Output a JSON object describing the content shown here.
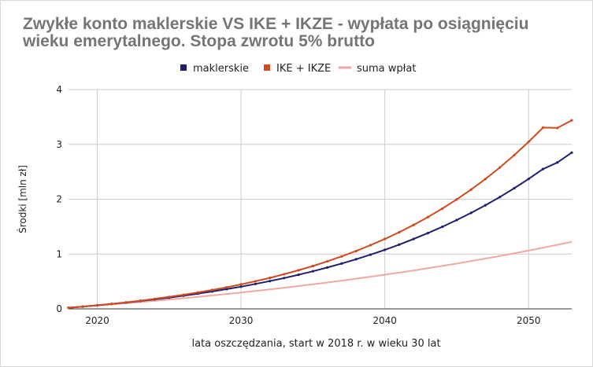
{
  "chart_data": {
    "type": "line",
    "title": "Zwykłe konto maklerskie VS IKE + IKZE - wypłata po osiągnięciu wieku emerytalnego. Stopa zwrotu 5% brutto",
    "xlabel": "lata oszczędzania, start w 2018 r. w wieku 30 lat",
    "ylabel": "Środki [mln zł]",
    "xlim": [
      2018,
      2053
    ],
    "ylim": [
      0,
      4
    ],
    "x_ticks": [
      2020,
      2030,
      2040,
      2050
    ],
    "y_ticks": [
      0,
      1,
      2,
      3,
      4
    ],
    "grid": true,
    "legend_position": "top-center",
    "x": [
      2018,
      2019,
      2020,
      2021,
      2022,
      2023,
      2024,
      2025,
      2026,
      2027,
      2028,
      2029,
      2030,
      2031,
      2032,
      2033,
      2034,
      2035,
      2036,
      2037,
      2038,
      2039,
      2040,
      2041,
      2042,
      2043,
      2044,
      2045,
      2046,
      2047,
      2048,
      2049,
      2050,
      2051,
      2052,
      2053
    ],
    "series": [
      {
        "name": "maklerskie",
        "color": "#1f1f6e",
        "values": [
          0.02,
          0.041,
          0.064,
          0.089,
          0.115,
          0.143,
          0.173,
          0.205,
          0.24,
          0.277,
          0.317,
          0.36,
          0.405,
          0.454,
          0.506,
          0.562,
          0.622,
          0.686,
          0.754,
          0.827,
          0.905,
          0.988,
          1.077,
          1.172,
          1.274,
          1.382,
          1.497,
          1.62,
          1.751,
          1.891,
          2.04,
          2.2,
          2.37,
          2.55,
          2.67,
          2.85
        ]
      },
      {
        "name": "IKE + IKZE",
        "color": "#d14a1f",
        "values": [
          0.02,
          0.041,
          0.065,
          0.091,
          0.119,
          0.149,
          0.182,
          0.218,
          0.257,
          0.299,
          0.344,
          0.393,
          0.446,
          0.503,
          0.565,
          0.632,
          0.704,
          0.782,
          0.866,
          0.957,
          1.055,
          1.161,
          1.275,
          1.398,
          1.531,
          1.674,
          1.829,
          1.996,
          2.176,
          2.37,
          2.579,
          2.804,
          3.046,
          3.306,
          3.3,
          3.44
        ]
      },
      {
        "name": "suma wpłat",
        "color": "#f0a8a0",
        "values": [
          0.02,
          0.04,
          0.06,
          0.081,
          0.102,
          0.124,
          0.147,
          0.17,
          0.194,
          0.219,
          0.245,
          0.271,
          0.298,
          0.326,
          0.355,
          0.385,
          0.416,
          0.448,
          0.481,
          0.515,
          0.55,
          0.586,
          0.623,
          0.661,
          0.7,
          0.741,
          0.783,
          0.826,
          0.871,
          0.917,
          0.964,
          1.013,
          1.063,
          1.115,
          1.168,
          1.222
        ]
      }
    ]
  }
}
